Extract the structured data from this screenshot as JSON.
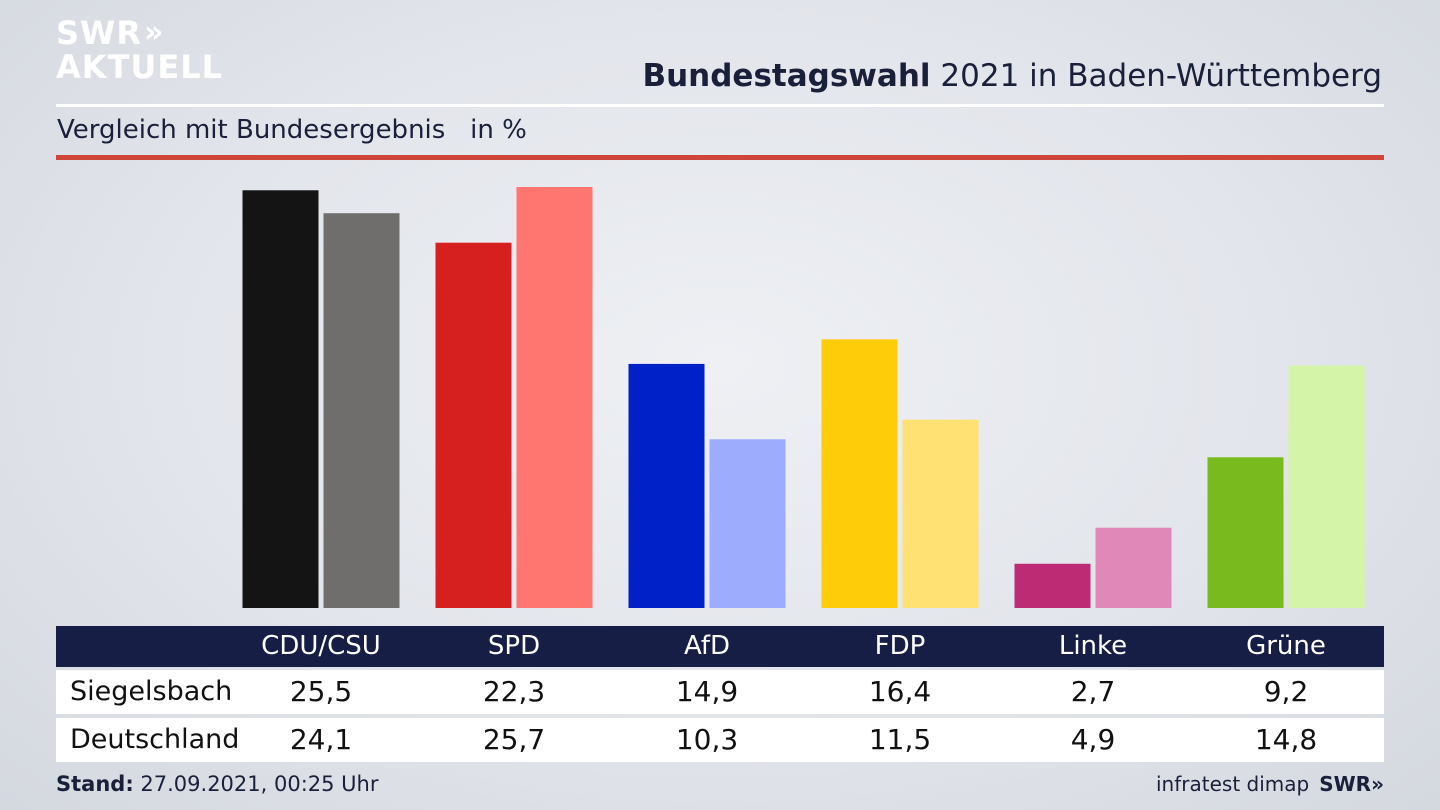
{
  "branding": {
    "logo_line1": "SWR",
    "logo_chevrons": "»",
    "logo_line2": "AKTUELL",
    "footer_logo": "SWR»"
  },
  "header": {
    "title_bold": "Bundestagswahl",
    "title_rest": " 2021 in Baden-Württemberg",
    "subtitle": "Vergleich mit Bundesergebnis   in %"
  },
  "footer": {
    "stand_label": "Stand:",
    "stand_value": " 27.09.2021, 00:25 Uhr",
    "source": "infratest dimap"
  },
  "colors": {
    "header_text": "#1a1f3a",
    "table_header": "#161e45",
    "accent_red": "#d0453a",
    "parties": {
      "CDU/CSU": [
        "#141414",
        "#6f6e6c"
      ],
      "SPD": [
        "#d61f1f",
        "#ff7570"
      ],
      "AfD": [
        "#0021c8",
        "#9eacfe"
      ],
      "FDP": [
        "#ffcc0a",
        "#ffe072"
      ],
      "Linke": [
        "#bc2b73",
        "#e088b8"
      ],
      "Grüne": [
        "#79bb1e",
        "#d4f5a8"
      ]
    }
  },
  "chart_data": {
    "type": "bar",
    "title": "Bundestagswahl 2021 in Baden-Württemberg",
    "subtitle": "Vergleich mit Bundesergebnis",
    "ylabel": "in %",
    "categories": [
      "CDU/CSU",
      "SPD",
      "AfD",
      "FDP",
      "Linke",
      "Grüne"
    ],
    "series": [
      {
        "name": "Siegelsbach",
        "values": [
          25.5,
          22.3,
          14.9,
          16.4,
          2.7,
          9.2
        ],
        "labels": [
          "25,5",
          "22,3",
          "14,9",
          "16,4",
          "2,7",
          "9,2"
        ]
      },
      {
        "name": "Deutschland",
        "values": [
          24.1,
          25.7,
          10.3,
          11.5,
          4.9,
          14.8
        ],
        "labels": [
          "24,1",
          "25,7",
          "10,3",
          "11,5",
          "4,9",
          "14,8"
        ]
      }
    ],
    "ylim": [
      0,
      25.7
    ],
    "grid": false,
    "legend": "table-bottom"
  }
}
